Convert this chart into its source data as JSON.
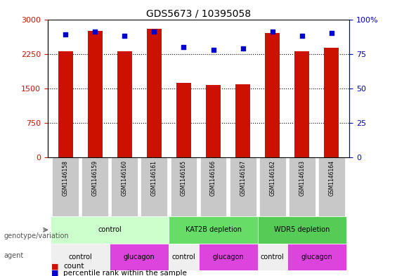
{
  "title": "GDS5673 / 10395058",
  "samples": [
    "GSM1146158",
    "GSM1146159",
    "GSM1146160",
    "GSM1146161",
    "GSM1146165",
    "GSM1146166",
    "GSM1146167",
    "GSM1146162",
    "GSM1146163",
    "GSM1146164"
  ],
  "counts": [
    2300,
    2750,
    2300,
    2800,
    1620,
    1570,
    1590,
    2700,
    2300,
    2380
  ],
  "percentiles": [
    89,
    91,
    88,
    91,
    80,
    78,
    79,
    91,
    88,
    90
  ],
  "ylim_left": [
    0,
    3000
  ],
  "ylim_right": [
    0,
    100
  ],
  "yticks_left": [
    0,
    750,
    1500,
    2250,
    3000
  ],
  "yticks_right": [
    0,
    25,
    50,
    75,
    100
  ],
  "bar_color": "#CC1100",
  "dot_color": "#0000CC",
  "genotype_groups": [
    {
      "label": "control",
      "start": 0,
      "end": 4,
      "color": "#CCFFCC"
    },
    {
      "label": "KAT2B depletion",
      "start": 4,
      "end": 7,
      "color": "#66DD66"
    },
    {
      "label": "WDR5 depletion",
      "start": 7,
      "end": 10,
      "color": "#55CC55"
    }
  ],
  "agent_groups": [
    {
      "label": "control",
      "start": 0,
      "end": 2,
      "color": "#FFFFFF"
    },
    {
      "label": "glucagon",
      "start": 2,
      "end": 4,
      "color": "#DD44DD"
    },
    {
      "label": "control",
      "start": 4,
      "end": 5,
      "color": "#FFFFFF"
    },
    {
      "label": "glucagon",
      "start": 5,
      "end": 7,
      "color": "#DD44DD"
    },
    {
      "label": "control",
      "start": 7,
      "end": 8,
      "color": "#FFFFFF"
    },
    {
      "label": "glucagon",
      "start": 8,
      "end": 10,
      "color": "#DD44DD"
    }
  ],
  "legend_count_color": "#CC1100",
  "legend_dot_color": "#0000CC",
  "bg_color": "#FFFFFF",
  "plot_bg": "#FFFFFF",
  "grid_color": "#000000",
  "tick_label_color_left": "#CC1100",
  "tick_label_color_right": "#0000BB"
}
